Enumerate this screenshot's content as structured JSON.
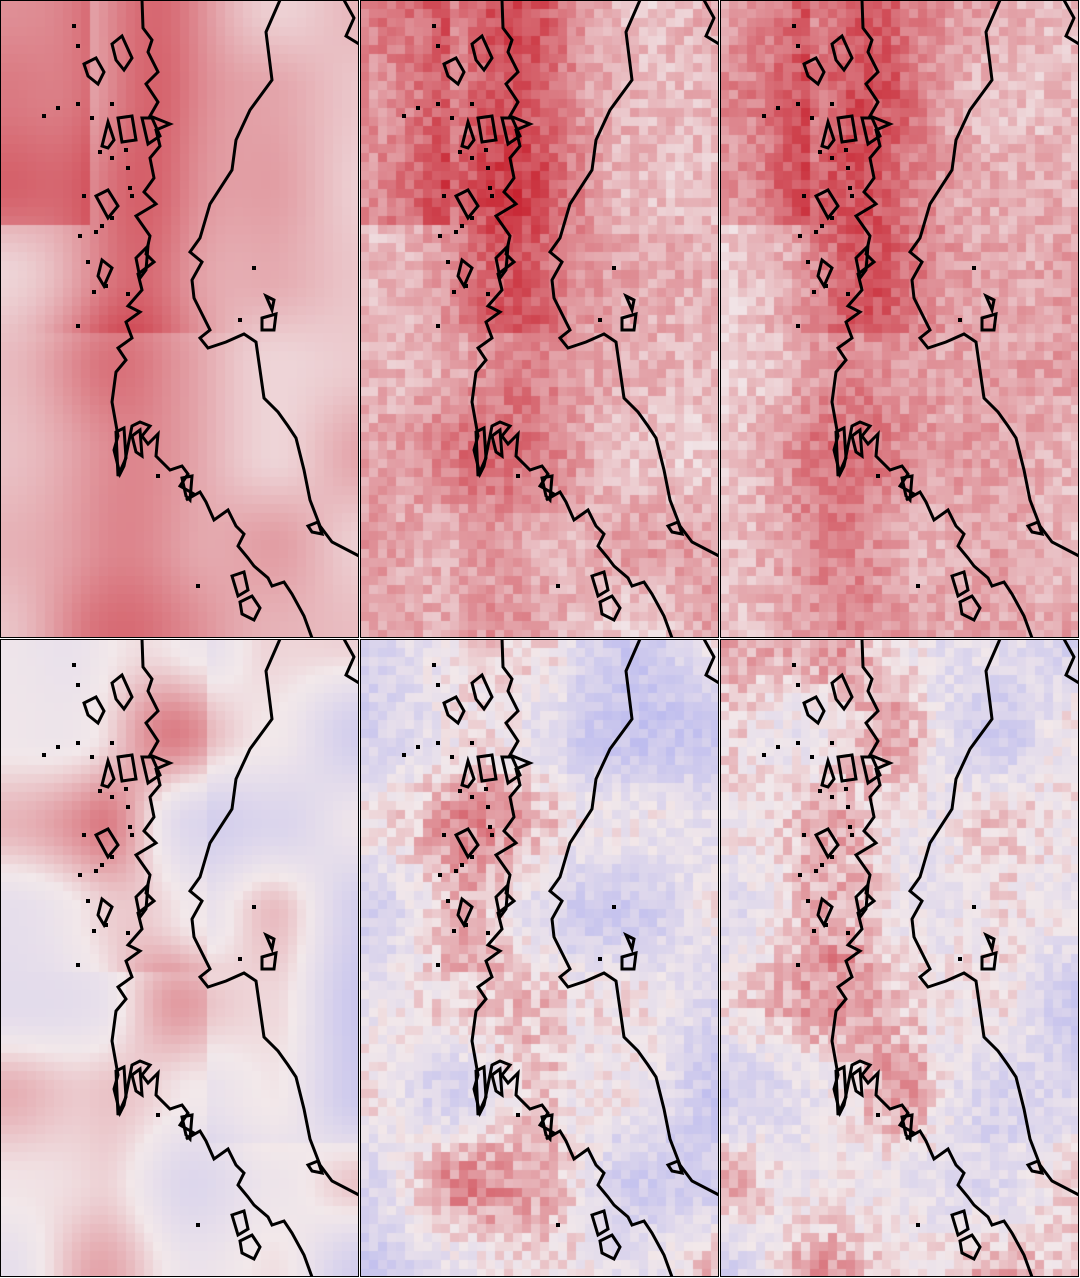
{
  "figure": {
    "rows": 2,
    "cols": 3,
    "colormap": "coolwarm",
    "colors": {
      "max_red": "#c0000f",
      "neutral": "#f2e8ea",
      "min_blue": "#a9abf0",
      "coast_line": "#000000",
      "panel_border": "#000000",
      "separator": "#ffffff"
    }
  },
  "panels": [
    {
      "id": "row1-col1",
      "sign": "positive",
      "smoothness": "smooth"
    },
    {
      "id": "row1-col2",
      "sign": "positive",
      "smoothness": "noisy"
    },
    {
      "id": "row1-col3",
      "sign": "positive",
      "smoothness": "noisy"
    },
    {
      "id": "row2-col1",
      "sign": "diverging",
      "smoothness": "smooth"
    },
    {
      "id": "row2-col2",
      "sign": "diverging",
      "smoothness": "noisy"
    },
    {
      "id": "row2-col3",
      "sign": "diverging",
      "smoothness": "noisy"
    }
  ]
}
